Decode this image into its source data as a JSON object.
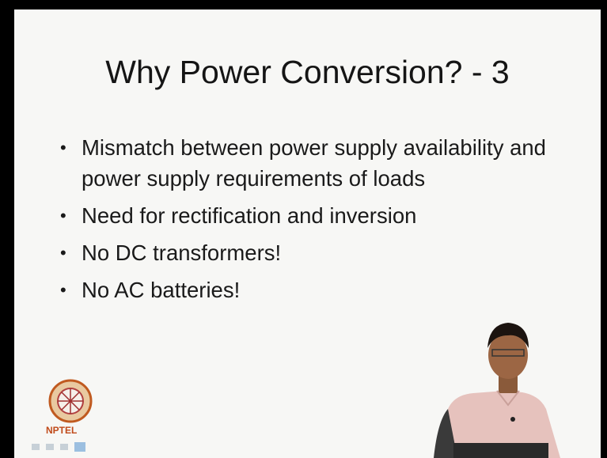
{
  "slide": {
    "title": "Why Power Conversion? - 3",
    "bullets": [
      "Mismatch between power supply availability and power supply requirements of loads",
      "Need for rectification and inversion",
      "No DC transformers!",
      "No AC batteries!"
    ]
  },
  "logo": {
    "label": "NPTEL"
  }
}
